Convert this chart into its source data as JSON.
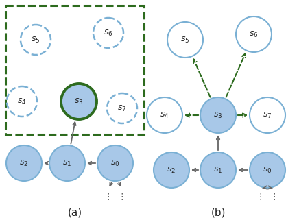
{
  "fig_width": 4.36,
  "fig_height": 3.18,
  "dpi": 100,
  "bg_color": "#ffffff",
  "node_fill_blue": "#a8c8e8",
  "node_fill_white": "#ffffff",
  "node_edge_blue_dashed": "#7ab0d4",
  "node_edge_blue_solid": "#7ab0d4",
  "node_edge_green": "#2d6b1e",
  "arrow_gray": "#666666",
  "arrow_green_dashed": "#2d6b1e",
  "panel_a_label": "(a)",
  "panel_b_label": "(b)"
}
